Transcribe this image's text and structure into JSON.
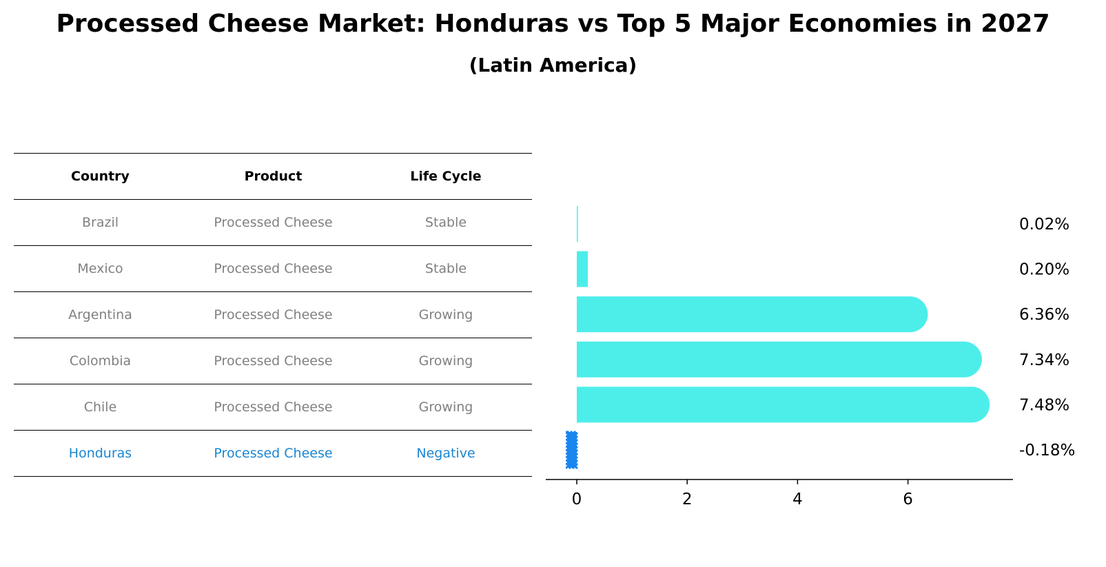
{
  "chart_data": {
    "type": "bar",
    "orientation": "horizontal",
    "title": "Processed Cheese Market: Honduras vs Top 5 Major Economies in 2027",
    "subtitle": "(Latin America)",
    "xlabel": "",
    "ylabel": "",
    "xlim": [
      -0.56,
      7.9
    ],
    "x_ticks": [
      0,
      2,
      4,
      6
    ],
    "x_tick_labels": [
      "0",
      "2",
      "4",
      "6"
    ],
    "categories": [
      "Brazil",
      "Mexico",
      "Argentina",
      "Colombia",
      "Chile",
      "Honduras"
    ],
    "values": [
      0.02,
      0.2,
      6.36,
      7.34,
      7.48,
      -0.18
    ],
    "value_labels": [
      "0.02%",
      "0.20%",
      "6.36%",
      "7.34%",
      "7.48%",
      "-0.18%"
    ],
    "bar_colors": [
      "#4deeea",
      "#4deeea",
      "#4deeea",
      "#4deeea",
      "#4deeea",
      "#1a86ee"
    ],
    "grid": false
  },
  "table": {
    "headers": [
      "Country",
      "Product",
      "Life Cycle"
    ],
    "rows": [
      [
        "Brazil",
        "Processed Cheese",
        "Stable"
      ],
      [
        "Mexico",
        "Processed Cheese",
        "Stable"
      ],
      [
        "Argentina",
        "Processed Cheese",
        "Growing"
      ],
      [
        "Colombia",
        "Processed Cheese",
        "Growing"
      ],
      [
        "Chile",
        "Processed Cheese",
        "Growing"
      ],
      [
        "Honduras",
        "Processed Cheese",
        "Negative"
      ]
    ],
    "text_color": "#808080",
    "highlight_color": "#1a86d0"
  },
  "colors": {
    "positive_bar": "#4deeea",
    "negative_bar": "#1a86ee",
    "axis": "#000000"
  }
}
